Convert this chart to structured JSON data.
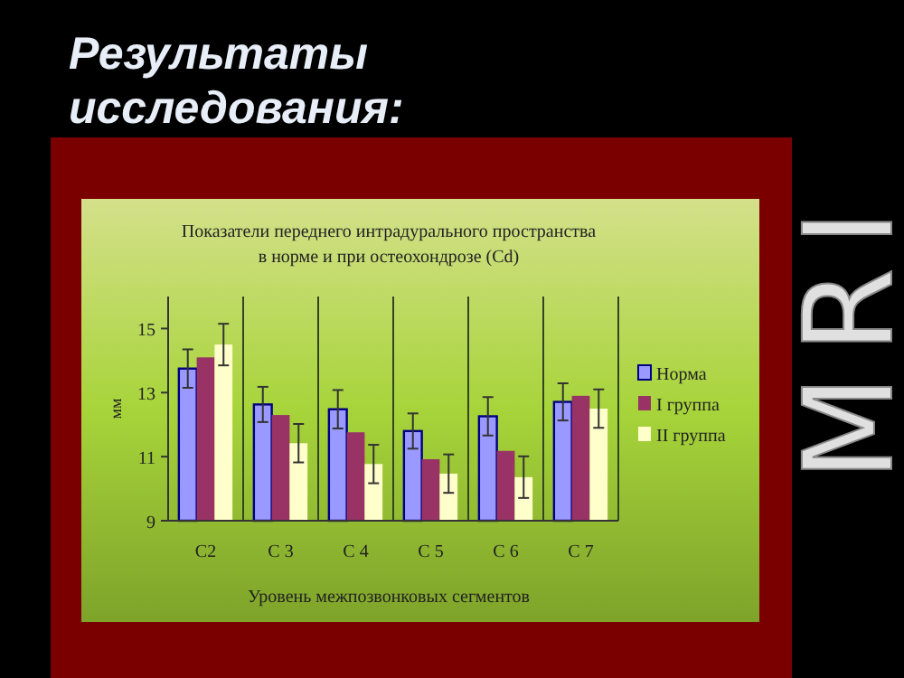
{
  "chart_data": {
    "type": "bar",
    "title": "Результаты исследования:",
    "subtitle": "Показатели переднего интрадурального пространства в норме и при остеохондрозе (Cd)",
    "xlabel": "Уровень межпозвонковых сегментов",
    "ylabel": "мм",
    "categories": [
      "C2",
      "C 3",
      "C 4",
      "C 5",
      "C 6",
      "C 7"
    ],
    "series": [
      {
        "name": "Норма",
        "color": "#9999ff",
        "values": [
          13.75,
          12.63,
          12.48,
          11.8,
          12.26,
          12.71
        ],
        "errors": [
          0.6,
          0.55,
          0.6,
          0.55,
          0.6,
          0.58
        ]
      },
      {
        "name": "I группа",
        "color": "#993366",
        "values": [
          14.1,
          12.3,
          11.76,
          10.92,
          11.18,
          12.9
        ]
      },
      {
        "name": "II группа",
        "color": "#ffffcc",
        "values": [
          14.5,
          11.42,
          10.77,
          10.47,
          10.36,
          12.5
        ],
        "errors": [
          0.65,
          0.6,
          0.6,
          0.6,
          0.65,
          0.6
        ]
      }
    ],
    "ylim": [
      9,
      16
    ],
    "yticks": [
      9,
      11,
      13,
      15
    ],
    "grid": "x",
    "legend": "right",
    "annotations": [
      "MRI"
    ]
  }
}
